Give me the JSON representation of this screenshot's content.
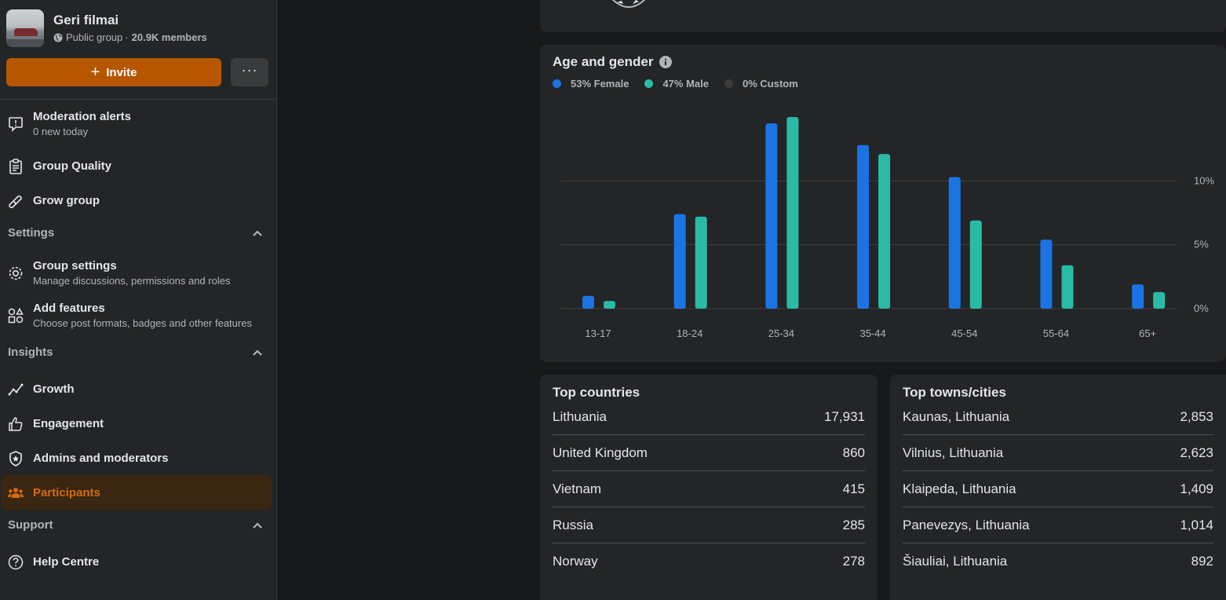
{
  "group": {
    "name": "Geri filmai",
    "privacy": "Public group",
    "members": "20.9K members"
  },
  "actions": {
    "invite_label": "Invite",
    "more_label": "···"
  },
  "nav": {
    "moderation": {
      "title": "Moderation alerts",
      "subtitle": "0 new today"
    },
    "group_quality": "Group Quality",
    "grow_group": "Grow group",
    "settings_section": "Settings",
    "group_settings": {
      "title": "Group settings",
      "subtitle": "Manage discussions, permissions and roles"
    },
    "add_features": {
      "title": "Add features",
      "subtitle": "Choose post formats, badges and other features"
    },
    "insights_section": "Insights",
    "growth": "Growth",
    "engagement": "Engagement",
    "admins": "Admins and moderators",
    "participants": "Participants",
    "support_section": "Support",
    "help": "Help Centre"
  },
  "colors": {
    "accent": "#b65600",
    "female": "#1b74e4",
    "male": "#2abba7",
    "custom": "#3a3b3c"
  },
  "age_gender": {
    "title": "Age and gender",
    "legend": {
      "female": "53% Female",
      "male": "47% Male",
      "custom": "0% Custom"
    }
  },
  "chart_data": {
    "type": "bar",
    "title": "Age and gender",
    "categories": [
      "13-17",
      "18-24",
      "25-34",
      "35-44",
      "45-54",
      "55-64",
      "65+"
    ],
    "series": [
      {
        "name": "53% Female",
        "values": [
          1.0,
          7.4,
          14.5,
          12.8,
          10.3,
          5.4,
          1.9
        ]
      },
      {
        "name": "47% Male",
        "values": [
          0.6,
          7.2,
          15.0,
          12.1,
          6.9,
          3.4,
          1.3
        ]
      }
    ],
    "yticks": [
      "0%",
      "5%",
      "10%"
    ],
    "ylim": [
      0,
      15
    ],
    "grid": true
  },
  "top_countries": {
    "title": "Top countries",
    "rows": [
      {
        "name": "Lithuania",
        "value": "17,931"
      },
      {
        "name": "United Kingdom",
        "value": "860"
      },
      {
        "name": "Vietnam",
        "value": "415"
      },
      {
        "name": "Russia",
        "value": "285"
      },
      {
        "name": "Norway",
        "value": "278"
      }
    ]
  },
  "top_cities": {
    "title": "Top towns/cities",
    "rows": [
      {
        "name": "Kaunas, Lithuania",
        "value": "2,853"
      },
      {
        "name": "Vilnius, Lithuania",
        "value": "2,623"
      },
      {
        "name": "Klaipeda, Lithuania",
        "value": "1,409"
      },
      {
        "name": "Panevezys, Lithuania",
        "value": "1,014"
      },
      {
        "name": "Šiauliai, Lithuania",
        "value": "892"
      }
    ]
  }
}
